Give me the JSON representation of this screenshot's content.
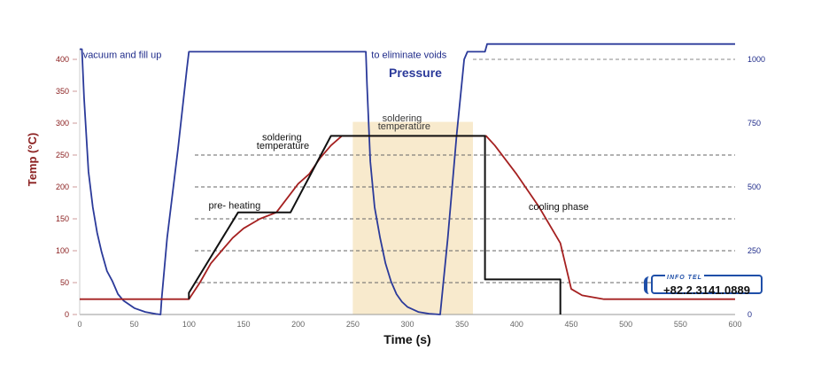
{
  "chart_data": {
    "type": "line",
    "xlabel": "Time (s)",
    "ylabel": "Temp (°C)",
    "xlim": [
      0,
      600
    ],
    "ylim": [
      0,
      400
    ],
    "y2lim": [
      0,
      1000
    ],
    "x_ticks": [
      "0",
      "50",
      "100",
      "150",
      "200",
      "250",
      "300",
      "350",
      "400",
      "450",
      "500",
      "550",
      "600"
    ],
    "y_ticks": [
      "0",
      "50",
      "100",
      "150",
      "200",
      "250",
      "300",
      "350",
      "400"
    ],
    "y2_ticks": [
      "0",
      "250",
      "500",
      "750",
      "1000"
    ],
    "y_ticks_dashed": [
      50,
      100,
      150,
      200,
      250
    ],
    "y2_ticks_dashed": [
      1000
    ],
    "series": [
      {
        "name": "Pressure",
        "axis": "right",
        "color": "#2b3a9a",
        "points": [
          [
            0,
            1040
          ],
          [
            2,
            1040
          ],
          [
            4,
            850
          ],
          [
            8,
            560
          ],
          [
            12,
            420
          ],
          [
            16,
            320
          ],
          [
            20,
            245
          ],
          [
            25,
            170
          ],
          [
            30,
            130
          ],
          [
            35,
            80
          ],
          [
            40,
            55
          ],
          [
            50,
            25
          ],
          [
            60,
            10
          ],
          [
            70,
            2
          ],
          [
            74,
            0
          ],
          [
            75,
            60
          ],
          [
            80,
            300
          ],
          [
            90,
            650
          ],
          [
            98,
            960
          ],
          [
            100,
            1030
          ],
          [
            150,
            1030
          ],
          [
            200,
            1030
          ],
          [
            250,
            1030
          ],
          [
            262,
            1030
          ],
          [
            263,
            900
          ],
          [
            266,
            600
          ],
          [
            270,
            420
          ],
          [
            275,
            300
          ],
          [
            280,
            200
          ],
          [
            285,
            130
          ],
          [
            290,
            80
          ],
          [
            295,
            50
          ],
          [
            300,
            30
          ],
          [
            310,
            10
          ],
          [
            320,
            3
          ],
          [
            330,
            0
          ],
          [
            337,
            300
          ],
          [
            345,
            700
          ],
          [
            352,
            1000
          ],
          [
            355,
            1030
          ],
          [
            360,
            1030
          ],
          [
            371,
            1030
          ],
          [
            373,
            1060
          ],
          [
            380,
            1060
          ],
          [
            600,
            1060
          ]
        ]
      },
      {
        "name": "Temperature",
        "axis": "left",
        "color": "#a52020",
        "points": [
          [
            0,
            24
          ],
          [
            100,
            24
          ],
          [
            110,
            50
          ],
          [
            120,
            80
          ],
          [
            130,
            100
          ],
          [
            140,
            120
          ],
          [
            150,
            135
          ],
          [
            165,
            150
          ],
          [
            180,
            160
          ],
          [
            200,
            205
          ],
          [
            210,
            220
          ],
          [
            220,
            245
          ],
          [
            230,
            265
          ],
          [
            240,
            280
          ],
          [
            260,
            280
          ],
          [
            300,
            280
          ],
          [
            350,
            280
          ],
          [
            372,
            280
          ],
          [
            380,
            265
          ],
          [
            400,
            220
          ],
          [
            420,
            170
          ],
          [
            440,
            112
          ],
          [
            450,
            40
          ],
          [
            460,
            30
          ],
          [
            480,
            24
          ],
          [
            520,
            24
          ],
          [
            600,
            24
          ]
        ]
      },
      {
        "name": "",
        "axis": "left",
        "color": "#111111",
        "points": [
          [
            100,
            24
          ],
          [
            100,
            34
          ],
          [
            145,
            160
          ],
          [
            193,
            160
          ],
          [
            230,
            280
          ],
          [
            371,
            280
          ],
          [
            371,
            55
          ],
          [
            440,
            55
          ],
          [
            440,
            0
          ]
        ]
      }
    ],
    "highlight": {
      "x_start": 250,
      "x_end": 360,
      "y_top": 302,
      "color": "#f7e6c4"
    },
    "annotations": [
      {
        "text": "vacuum and fill up",
        "x": 3,
        "y": 402,
        "color": "#1f2b8a"
      },
      {
        "text": "to eliminate voids",
        "x": 267,
        "y": 402,
        "color": "#1f2b8a"
      },
      {
        "text": "Pressure",
        "x": 283,
        "y": 372,
        "color": "#2b3a9a"
      },
      {
        "text": "soldering",
        "x": 167,
        "y": 273,
        "color": "#111111"
      },
      {
        "text": "temperature",
        "x": 162,
        "y": 260,
        "color": "#111111"
      },
      {
        "text": "soldering",
        "x": 277,
        "y": 303,
        "color": "#3a3a3a"
      },
      {
        "text": "temperature",
        "x": 273,
        "y": 290,
        "color": "#3a3a3a"
      },
      {
        "text": "pre- heating",
        "x": 118,
        "y": 166,
        "color": "#111111"
      },
      {
        "text": "cooling phase",
        "x": 411,
        "y": 164,
        "color": "#111111"
      }
    ]
  },
  "info_badge": {
    "label": "INFO TEL",
    "number": "+82.2.3141.0889"
  }
}
